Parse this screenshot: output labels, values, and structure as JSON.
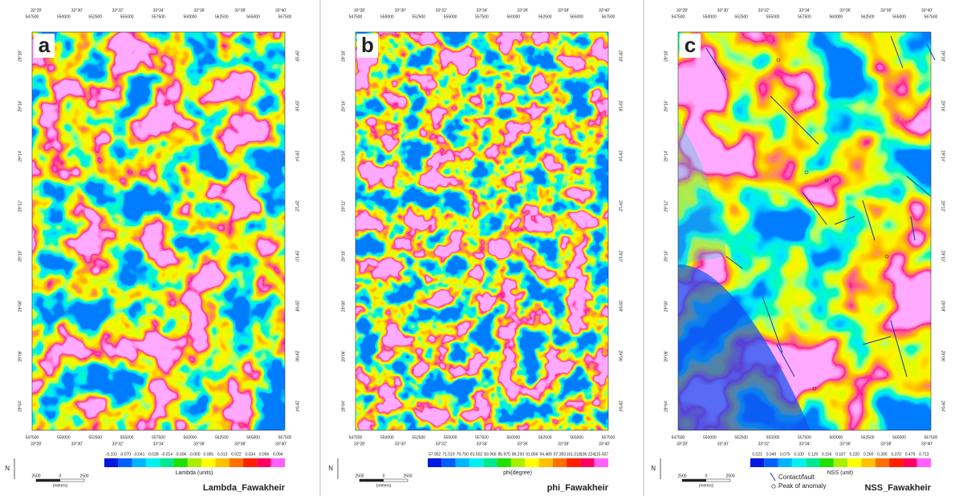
{
  "axes": {
    "longitudes": [
      "33°28'",
      "33°30'",
      "33°32'",
      "33°34'",
      "33°36'",
      "33°38'",
      "33°40'"
    ],
    "eastings": [
      "547500",
      "550000",
      "552500",
      "555000",
      "557500",
      "560000",
      "562500",
      "565000",
      "567500"
    ],
    "latitudes": [
      "29°18'",
      "29°16'",
      "29°14'",
      "29°12'",
      "29°10'",
      "29°08'",
      "29°06'",
      "29°04'"
    ]
  },
  "panels": [
    {
      "label": "a",
      "title": "Lambda_Fawakheir",
      "unit": "Lambda (units)",
      "scale": [
        "-0.103",
        "-0.070",
        "-0.041",
        "-0.028",
        "-0.014",
        "-0.006",
        "-0.000",
        "0.005",
        "0.013",
        "0.022",
        "0.034",
        "0.056",
        "0.094"
      ]
    },
    {
      "label": "b",
      "title": "phi_Fawakheir",
      "unit": "phi(degree)",
      "scale": [
        "57.952",
        "71.019",
        "79.750",
        "81.502",
        "83.966",
        "85.970",
        "89.250",
        "91.856",
        "94.489",
        "97.393",
        "101.018",
        "106.224",
        "115.937"
      ]
    },
    {
      "label": "c",
      "title": "NSS_Fawakheir",
      "unit": "NSS (unit)",
      "scale": [
        "0.021",
        "0.049",
        "0.075",
        "0.100",
        "0.129",
        "0.156",
        "0.187",
        "0.220",
        "0.260",
        "0.305",
        "0.370",
        "0.479",
        "0.713"
      ]
    }
  ],
  "north": "N",
  "scale_bar": {
    "ticks": [
      "2500",
      "0",
      "2500"
    ],
    "unit": "(meters)"
  },
  "legend": {
    "fault": "Contact/fault",
    "peak": "Peak of anomaly"
  }
}
